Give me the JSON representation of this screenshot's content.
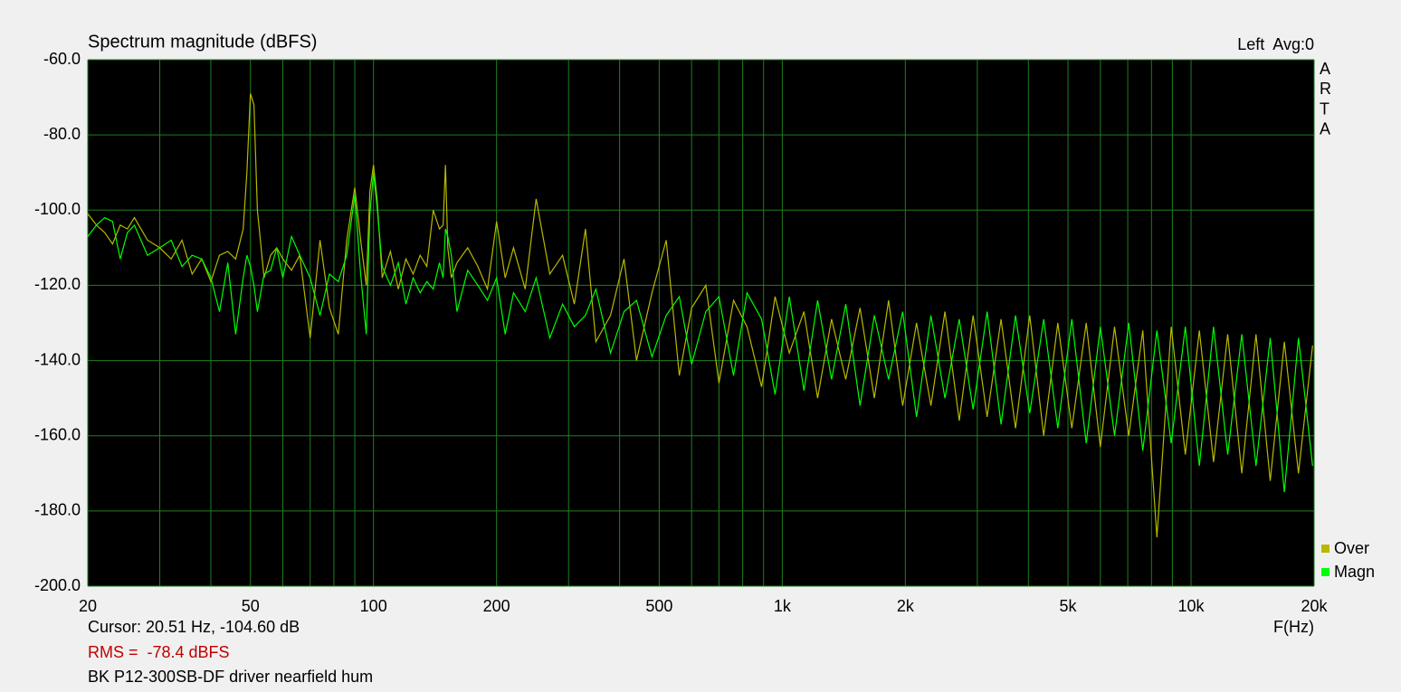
{
  "chart_data": {
    "type": "line",
    "title": "Spectrum magnitude (dBFS)",
    "corner_label": "Left  Avg:0",
    "side_label": [
      "A",
      "R",
      "T",
      "A"
    ],
    "xlabel": "F(Hz)",
    "cursor_text": "Cursor: 20.51 Hz, -104.60 dB",
    "rms_text": "RMS =  -78.4 dBFS",
    "note": "BK P12-300SB-DF driver nearfield hum",
    "xscale": "log",
    "grid": true,
    "legend_position": "right",
    "xlim": [
      20,
      20000
    ],
    "ylim": [
      -200,
      -60
    ],
    "xticks": [
      20,
      50,
      100,
      200,
      500,
      {
        "value": 1000,
        "label": "1k"
      },
      {
        "value": 2000,
        "label": "2k"
      },
      {
        "value": 5000,
        "label": "5k"
      },
      {
        "value": 10000,
        "label": "10k"
      },
      {
        "value": 20000,
        "label": "20k"
      }
    ],
    "x_minor_grid": [
      30,
      40,
      60,
      70,
      80,
      90,
      300,
      400,
      600,
      700,
      800,
      900,
      3000,
      4000,
      6000,
      7000,
      8000,
      9000
    ],
    "yticks": [
      {
        "value": -60,
        "label": "-60.0"
      },
      {
        "value": -80,
        "label": "-80.0"
      },
      {
        "value": -100,
        "label": "-100.0"
      },
      {
        "value": -120,
        "label": "-120.0"
      },
      {
        "value": -140,
        "label": "-140.0"
      },
      {
        "value": -160,
        "label": "-160.0"
      },
      {
        "value": -180,
        "label": "-180.0"
      },
      {
        "value": -200,
        "label": "-200.0"
      }
    ],
    "x": [
      20,
      21,
      22,
      23,
      24,
      25,
      26,
      28,
      30,
      32,
      34,
      36,
      38,
      40,
      42,
      44,
      46,
      48,
      49,
      50,
      51,
      52,
      54,
      56,
      58,
      60,
      63,
      66,
      70,
      74,
      78,
      82,
      86,
      90,
      93,
      96,
      98,
      100,
      102,
      105,
      110,
      115,
      120,
      125,
      130,
      135,
      140,
      145,
      148,
      150,
      152,
      155,
      160,
      170,
      180,
      190,
      200,
      210,
      220,
      235,
      250,
      270,
      290,
      310,
      330,
      350,
      380,
      410,
      440,
      480,
      520,
      560,
      600,
      650,
      700,
      760,
      820,
      890,
      960,
      1040,
      1130,
      1220,
      1320,
      1430,
      1550,
      1680,
      1820,
      1970,
      2130,
      2310,
      2500,
      2710,
      2930,
      3170,
      3430,
      3720,
      4030,
      4360,
      4720,
      5110,
      5540,
      6000,
      6500,
      7040,
      7620,
      8250,
      8940,
      9680,
      10480,
      11350,
      12290,
      13310,
      14420,
      15620,
      16910,
      18310,
      19830
    ],
    "series": [
      {
        "name": "Over",
        "color": "#b8b800",
        "values": [
          -101,
          -104,
          -106,
          -109,
          -104,
          -105,
          -102,
          -108,
          -110,
          -113,
          -108,
          -117,
          -113,
          -119,
          -112,
          -111,
          -113,
          -105,
          -90,
          -69,
          -72,
          -100,
          -118,
          -112,
          -110,
          -113,
          -116,
          -112,
          -134,
          -108,
          -126,
          -133,
          -108,
          -94,
          -108,
          -120,
          -95,
          -88,
          -97,
          -118,
          -111,
          -121,
          -113,
          -117,
          -112,
          -115,
          -100,
          -105,
          -104,
          -88,
          -110,
          -118,
          -114,
          -110,
          -115,
          -121,
          -103,
          -118,
          -110,
          -121,
          -97,
          -117,
          -112,
          -125,
          -105,
          -135,
          -128,
          -113,
          -140,
          -122,
          -108,
          -144,
          -126,
          -120,
          -146,
          -124,
          -131,
          -147,
          -123,
          -138,
          -127,
          -150,
          -129,
          -145,
          -126,
          -150,
          -124,
          -152,
          -130,
          -152,
          -127,
          -156,
          -128,
          -155,
          -129,
          -158,
          -128,
          -160,
          -130,
          -158,
          -130,
          -163,
          -131,
          -160,
          -132,
          -187,
          -131,
          -165,
          -132,
          -167,
          -133,
          -170,
          -133,
          -172,
          -135,
          -170,
          -136
        ]
      },
      {
        "name": "Magn",
        "color": "#00ff00",
        "values": [
          -107,
          -104,
          -102,
          -103,
          -113,
          -106,
          -104,
          -112,
          -110,
          -108,
          -115,
          -112,
          -113,
          -118,
          -127,
          -114,
          -133,
          -118,
          -112,
          -115,
          -120,
          -127,
          -117,
          -116,
          -110,
          -118,
          -107,
          -112,
          -118,
          -128,
          -117,
          -119,
          -112,
          -96,
          -117,
          -133,
          -101,
          -90,
          -99,
          -115,
          -120,
          -114,
          -125,
          -118,
          -122,
          -119,
          -121,
          -114,
          -118,
          -105,
          -107,
          -112,
          -127,
          -116,
          -120,
          -124,
          -118,
          -133,
          -122,
          -127,
          -118,
          -134,
          -125,
          -131,
          -128,
          -121,
          -138,
          -127,
          -124,
          -139,
          -128,
          -123,
          -141,
          -127,
          -123,
          -144,
          -122,
          -129,
          -149,
          -123,
          -148,
          -124,
          -145,
          -125,
          -152,
          -128,
          -145,
          -127,
          -155,
          -128,
          -150,
          -129,
          -153,
          -127,
          -157,
          -128,
          -154,
          -129,
          -158,
          -129,
          -162,
          -131,
          -160,
          -130,
          -164,
          -132,
          -162,
          -131,
          -168,
          -131,
          -165,
          -133,
          -168,
          -134,
          -175,
          -134,
          -168
        ]
      }
    ]
  }
}
